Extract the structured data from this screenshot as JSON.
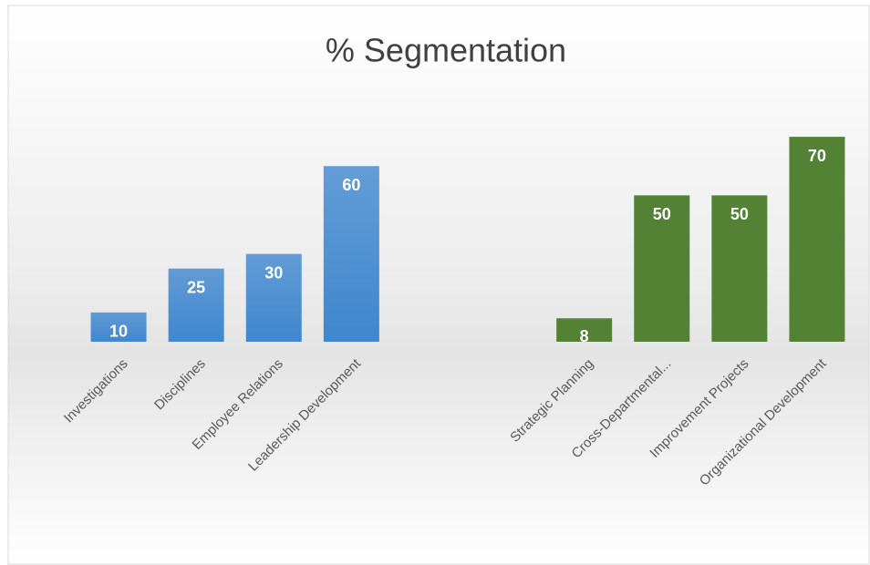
{
  "chart_data": {
    "type": "bar",
    "title": "% Segmentation",
    "categories": [
      "Investigations",
      "Disciplines",
      "Employee Relations",
      "Leadership Development",
      null,
      null,
      "Strategic Planning",
      "Cross-Departmental...",
      "Improvement Projects",
      "Organizational Development"
    ],
    "series": [
      {
        "color": "#3f87cf",
        "values": [
          10,
          25,
          30,
          60,
          null,
          null,
          null,
          null,
          null,
          null
        ]
      },
      {
        "color": "#548235",
        "values": [
          null,
          null,
          null,
          null,
          null,
          null,
          8,
          50,
          50,
          70
        ]
      }
    ],
    "ylim": [
      0,
      80
    ]
  }
}
